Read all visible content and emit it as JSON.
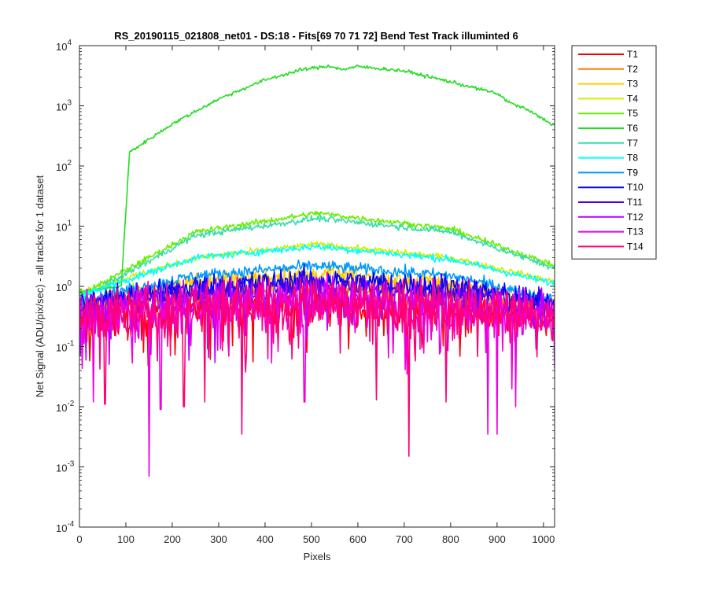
{
  "figure": {
    "title": "RS_20190115_021808_net01 - DS:18 - Fits[69  70  71  72]   Bend Test       Track illuminted 6"
  },
  "chart_data": {
    "type": "line",
    "title": "RS_20190115_021808_net01 - DS:18 - Fits[69  70  71  72]   Bend Test       Track illuminted 6",
    "xlabel": "Pixels",
    "ylabel": "Net Signal (ADU/pix/sec) - all tracks for 1 dataset",
    "xlim": [
      0,
      1024
    ],
    "ylim": [
      0.0001,
      10000
    ],
    "yscale": "log",
    "xticks": [
      0,
      100,
      200,
      300,
      400,
      500,
      600,
      700,
      800,
      900,
      1000
    ],
    "yticks": [
      {
        "value": 0.0001,
        "base": "10",
        "exp": "-4"
      },
      {
        "value": 0.001,
        "base": "10",
        "exp": "-3"
      },
      {
        "value": 0.01,
        "base": "10",
        "exp": "-2"
      },
      {
        "value": 0.1,
        "base": "10",
        "exp": "-1"
      },
      {
        "value": 1,
        "base": "10",
        "exp": "0"
      },
      {
        "value": 10,
        "base": "10",
        "exp": "1"
      },
      {
        "value": 100,
        "base": "10",
        "exp": "2"
      },
      {
        "value": 1000,
        "base": "10",
        "exp": "3"
      },
      {
        "value": 10000,
        "base": "10",
        "exp": "4"
      }
    ],
    "grid": false,
    "legend_position": "outside-right-top",
    "series": [
      {
        "name": "T1",
        "color": "#ff0000",
        "profile": [
          [
            0,
            0.25
          ],
          [
            250,
            0.4
          ],
          [
            512,
            0.5
          ],
          [
            800,
            0.4
          ],
          [
            1024,
            0.25
          ]
        ],
        "noise": 0.35
      },
      {
        "name": "T2",
        "color": "#ff8000",
        "profile": [
          [
            0,
            0.4
          ],
          [
            250,
            0.8
          ],
          [
            512,
            1.0
          ],
          [
            800,
            0.75
          ],
          [
            1024,
            0.4
          ]
        ],
        "noise": 0.2
      },
      {
        "name": "T3",
        "color": "#ffcc00",
        "profile": [
          [
            0,
            0.5
          ],
          [
            250,
            1.2
          ],
          [
            512,
            1.6
          ],
          [
            800,
            1.1
          ],
          [
            1024,
            0.5
          ]
        ],
        "noise": 0.15
      },
      {
        "name": "T4",
        "color": "#ccf000",
        "profile": [
          [
            0,
            0.8
          ],
          [
            250,
            3.0
          ],
          [
            512,
            5.0
          ],
          [
            800,
            3.0
          ],
          [
            1024,
            1.2
          ]
        ],
        "noise": 0.05
      },
      {
        "name": "T5",
        "color": "#66ee00",
        "profile": [
          [
            0,
            0.7
          ],
          [
            250,
            8.0
          ],
          [
            512,
            16.5
          ],
          [
            800,
            9.0
          ],
          [
            1024,
            2.2
          ]
        ],
        "noise": 0.05
      },
      {
        "name": "T6",
        "color": "#22dd22",
        "profile": [
          [
            0,
            0.8
          ],
          [
            90,
            1.0
          ],
          [
            103,
            40
          ],
          [
            108,
            170
          ],
          [
            200,
            500
          ],
          [
            300,
            1300
          ],
          [
            400,
            2700
          ],
          [
            480,
            4000
          ],
          [
            540,
            4600
          ],
          [
            565,
            4000
          ],
          [
            600,
            4500
          ],
          [
            700,
            3800
          ],
          [
            800,
            2500
          ],
          [
            900,
            1600
          ],
          [
            930,
            1100
          ],
          [
            960,
            900
          ],
          [
            1024,
            470
          ]
        ],
        "noise": 0.03
      },
      {
        "name": "T7",
        "color": "#33ddaa",
        "profile": [
          [
            0,
            0.6
          ],
          [
            250,
            7.0
          ],
          [
            512,
            13.5
          ],
          [
            800,
            8.0
          ],
          [
            1024,
            2.0
          ]
        ],
        "noise": 0.05
      },
      {
        "name": "T8",
        "color": "#00ffff",
        "profile": [
          [
            0,
            0.7
          ],
          [
            250,
            3.0
          ],
          [
            512,
            4.6
          ],
          [
            800,
            2.8
          ],
          [
            1024,
            1.1
          ]
        ],
        "noise": 0.06
      },
      {
        "name": "T9",
        "color": "#0099ff",
        "profile": [
          [
            0,
            0.6
          ],
          [
            250,
            1.5
          ],
          [
            512,
            2.2
          ],
          [
            800,
            1.5
          ],
          [
            1024,
            0.6
          ]
        ],
        "noise": 0.1
      },
      {
        "name": "T10",
        "color": "#0000ff",
        "profile": [
          [
            0,
            0.5
          ],
          [
            250,
            1.0
          ],
          [
            512,
            1.3
          ],
          [
            800,
            1.0
          ],
          [
            1024,
            0.5
          ]
        ],
        "noise": 0.2
      },
      {
        "name": "T11",
        "color": "#4400ee",
        "profile": [
          [
            0,
            0.45
          ],
          [
            250,
            0.8
          ],
          [
            512,
            1.0
          ],
          [
            800,
            0.8
          ],
          [
            1024,
            0.45
          ]
        ],
        "noise": 0.25
      },
      {
        "name": "T12",
        "color": "#bb00ff",
        "profile": [
          [
            0,
            0.35
          ],
          [
            250,
            0.55
          ],
          [
            512,
            0.7
          ],
          [
            800,
            0.55
          ],
          [
            1024,
            0.35
          ]
        ],
        "noise": 0.35
      },
      {
        "name": "T13",
        "color": "#ee00dd",
        "profile": [
          [
            0,
            0.3
          ],
          [
            250,
            0.45
          ],
          [
            512,
            0.55
          ],
          [
            800,
            0.45
          ],
          [
            1024,
            0.3
          ]
        ],
        "noise": 0.45
      },
      {
        "name": "T14",
        "color": "#ff0077",
        "profile": [
          [
            0,
            0.3
          ],
          [
            250,
            0.45
          ],
          [
            512,
            0.55
          ],
          [
            800,
            0.45
          ],
          [
            1024,
            0.3
          ]
        ],
        "noise": 0.45
      }
    ],
    "dips": [
      {
        "series": "T13",
        "x": 150,
        "y": 0.0007
      },
      {
        "series": "T14",
        "x": 350,
        "y": 0.0035
      },
      {
        "series": "T14",
        "x": 710,
        "y": 0.0015
      },
      {
        "series": "T13",
        "x": 880,
        "y": 0.0035
      },
      {
        "series": "T13",
        "x": 900,
        "y": 0.0035
      },
      {
        "series": "T13",
        "x": 30,
        "y": 0.012
      },
      {
        "series": "T14",
        "x": 55,
        "y": 0.011
      },
      {
        "series": "T13",
        "x": 175,
        "y": 0.009
      },
      {
        "series": "T14",
        "x": 225,
        "y": 0.01
      },
      {
        "series": "T14",
        "x": 270,
        "y": 0.012
      },
      {
        "series": "T13",
        "x": 485,
        "y": 0.012
      },
      {
        "series": "T14",
        "x": 640,
        "y": 0.013
      },
      {
        "series": "T14",
        "x": 790,
        "y": 0.012
      },
      {
        "series": "T13",
        "x": 940,
        "y": 0.01
      }
    ]
  }
}
